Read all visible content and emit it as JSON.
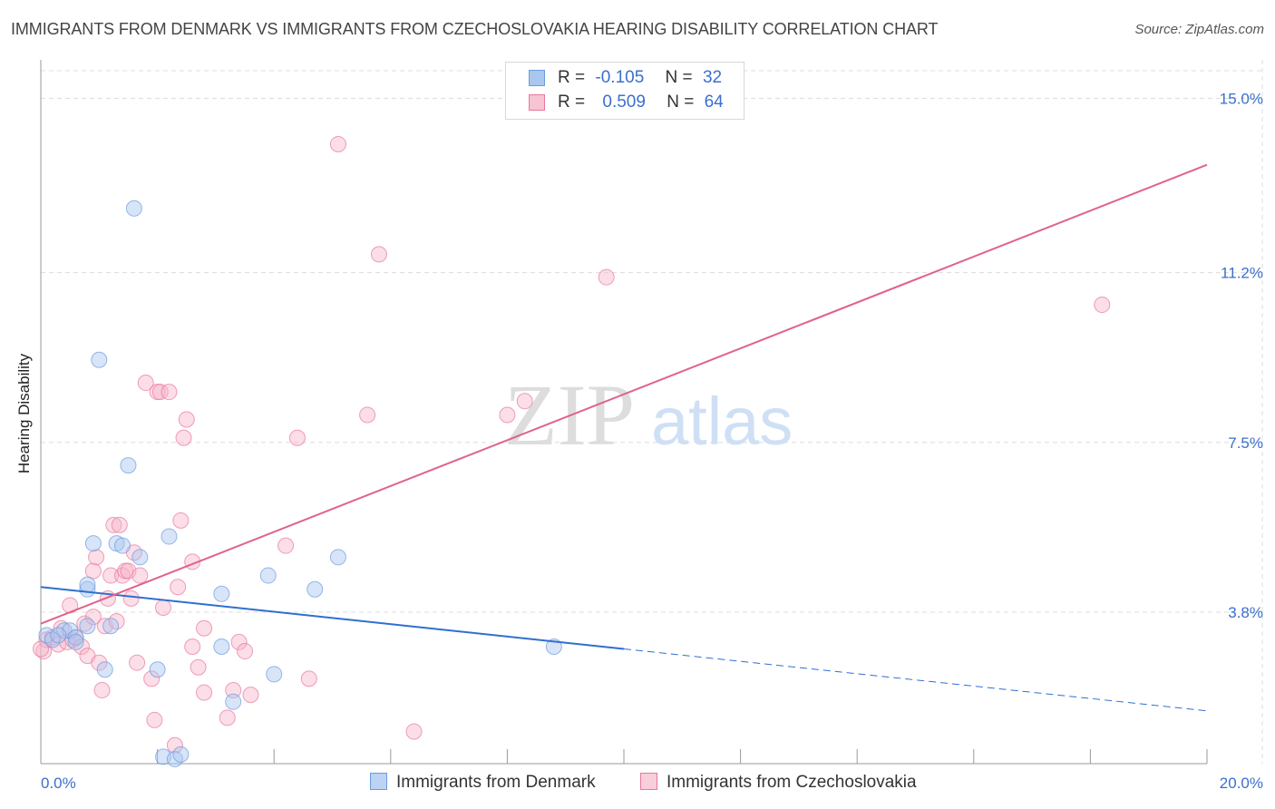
{
  "title": "IMMIGRANTS FROM DENMARK VS IMMIGRANTS FROM CZECHOSLOVAKIA HEARING DISABILITY CORRELATION CHART",
  "source": "Source: ZipAtlas.com",
  "watermark": {
    "zip": "ZIP",
    "atlas": "atlas"
  },
  "legend_top": [
    {
      "r_label": "R =",
      "r_value": "-0.105",
      "n_label": "N =",
      "n_value": "32"
    },
    {
      "r_label": "R =",
      "r_value": "0.509",
      "n_label": "N =",
      "n_value": "64"
    }
  ],
  "chart_data": {
    "type": "scatter",
    "title": "IMMIGRANTS FROM DENMARK VS IMMIGRANTS FROM CZECHOSLOVAKIA HEARING DISABILITY CORRELATION CHART",
    "xlabel": "",
    "ylabel": "Hearing Disability",
    "xlim": [
      0,
      20
    ],
    "ylim": [
      0.5,
      15.6
    ],
    "x_tick_labels": [
      "0.0%",
      "20.0%"
    ],
    "y_ticks": [
      3.8,
      7.5,
      11.2,
      15.0
    ],
    "y_tick_labels": [
      "3.8%",
      "7.5%",
      "11.2%",
      "15.0%"
    ],
    "grid": true,
    "legend_position": "bottom",
    "series": [
      {
        "name": "Immigrants from Denmark",
        "color": "#6a9be0",
        "fill": "#a9c6ef",
        "r": -0.105,
        "n": 32,
        "trend": {
          "x0": 0,
          "y0": 4.35,
          "x1": 10,
          "y1": 3.0,
          "dash_to_x": 20,
          "dash_to_y": 1.65
        },
        "points": [
          [
            0.1,
            3.3
          ],
          [
            0.4,
            3.4
          ],
          [
            0.5,
            3.4
          ],
          [
            0.6,
            3.25
          ],
          [
            0.6,
            3.15
          ],
          [
            0.8,
            3.5
          ],
          [
            0.8,
            4.3
          ],
          [
            0.8,
            4.4
          ],
          [
            0.9,
            5.3
          ],
          [
            1.0,
            9.3
          ],
          [
            1.1,
            2.55
          ],
          [
            1.2,
            3.5
          ],
          [
            1.3,
            5.3
          ],
          [
            1.4,
            5.25
          ],
          [
            1.5,
            7.0
          ],
          [
            1.6,
            12.6
          ],
          [
            1.7,
            5.0
          ],
          [
            2.0,
            2.55
          ],
          [
            2.1,
            0.65
          ],
          [
            2.2,
            5.45
          ],
          [
            2.3,
            0.6
          ],
          [
            2.4,
            0.7
          ],
          [
            3.1,
            4.2
          ],
          [
            3.1,
            3.05
          ],
          [
            3.3,
            1.85
          ],
          [
            3.9,
            4.6
          ],
          [
            4.0,
            2.45
          ],
          [
            4.7,
            4.3
          ],
          [
            5.1,
            5.0
          ],
          [
            8.8,
            3.05
          ],
          [
            0.2,
            3.2
          ],
          [
            0.3,
            3.3
          ]
        ]
      },
      {
        "name": "Immigrants from Czechoslovakia",
        "color": "#e8779b",
        "fill": "#f6b5c9",
        "r": 0.509,
        "n": 64,
        "trend": {
          "x0": 0,
          "y0": 3.55,
          "x1": 20,
          "y1": 13.55
        },
        "points": [
          [
            0.05,
            2.95
          ],
          [
            0.1,
            3.2
          ],
          [
            0.2,
            3.25
          ],
          [
            0.3,
            3.1
          ],
          [
            0.35,
            3.45
          ],
          [
            0.45,
            3.15
          ],
          [
            0.5,
            3.95
          ],
          [
            0.55,
            3.2
          ],
          [
            0.6,
            3.25
          ],
          [
            0.7,
            3.05
          ],
          [
            0.75,
            3.55
          ],
          [
            0.8,
            2.85
          ],
          [
            0.9,
            3.7
          ],
          [
            0.9,
            4.7
          ],
          [
            0.95,
            5.0
          ],
          [
            1.0,
            2.7
          ],
          [
            1.05,
            2.1
          ],
          [
            1.1,
            3.5
          ],
          [
            1.15,
            4.1
          ],
          [
            1.2,
            4.6
          ],
          [
            1.25,
            5.7
          ],
          [
            1.3,
            3.6
          ],
          [
            1.35,
            5.7
          ],
          [
            1.4,
            4.6
          ],
          [
            1.45,
            4.7
          ],
          [
            1.5,
            4.7
          ],
          [
            1.55,
            4.1
          ],
          [
            1.6,
            5.1
          ],
          [
            1.65,
            2.7
          ],
          [
            1.7,
            4.6
          ],
          [
            1.8,
            8.8
          ],
          [
            1.9,
            2.35
          ],
          [
            1.95,
            1.45
          ],
          [
            2.0,
            8.6
          ],
          [
            2.05,
            8.6
          ],
          [
            2.1,
            3.9
          ],
          [
            2.2,
            8.6
          ],
          [
            2.3,
            0.9
          ],
          [
            2.35,
            4.35
          ],
          [
            2.4,
            5.8
          ],
          [
            2.45,
            7.6
          ],
          [
            2.5,
            8.0
          ],
          [
            2.6,
            4.9
          ],
          [
            2.6,
            3.05
          ],
          [
            2.7,
            2.6
          ],
          [
            2.8,
            2.05
          ],
          [
            2.8,
            3.45
          ],
          [
            3.2,
            1.5
          ],
          [
            3.3,
            2.1
          ],
          [
            3.4,
            3.15
          ],
          [
            3.5,
            2.95
          ],
          [
            3.6,
            2.0
          ],
          [
            4.2,
            5.25
          ],
          [
            4.4,
            7.6
          ],
          [
            4.6,
            2.35
          ],
          [
            5.1,
            14.0
          ],
          [
            5.6,
            8.1
          ],
          [
            5.8,
            11.6
          ],
          [
            6.4,
            1.2
          ],
          [
            8.0,
            8.1
          ],
          [
            8.3,
            8.4
          ],
          [
            9.7,
            11.1
          ],
          [
            18.2,
            10.5
          ],
          [
            0.0,
            3.0
          ]
        ]
      }
    ]
  }
}
